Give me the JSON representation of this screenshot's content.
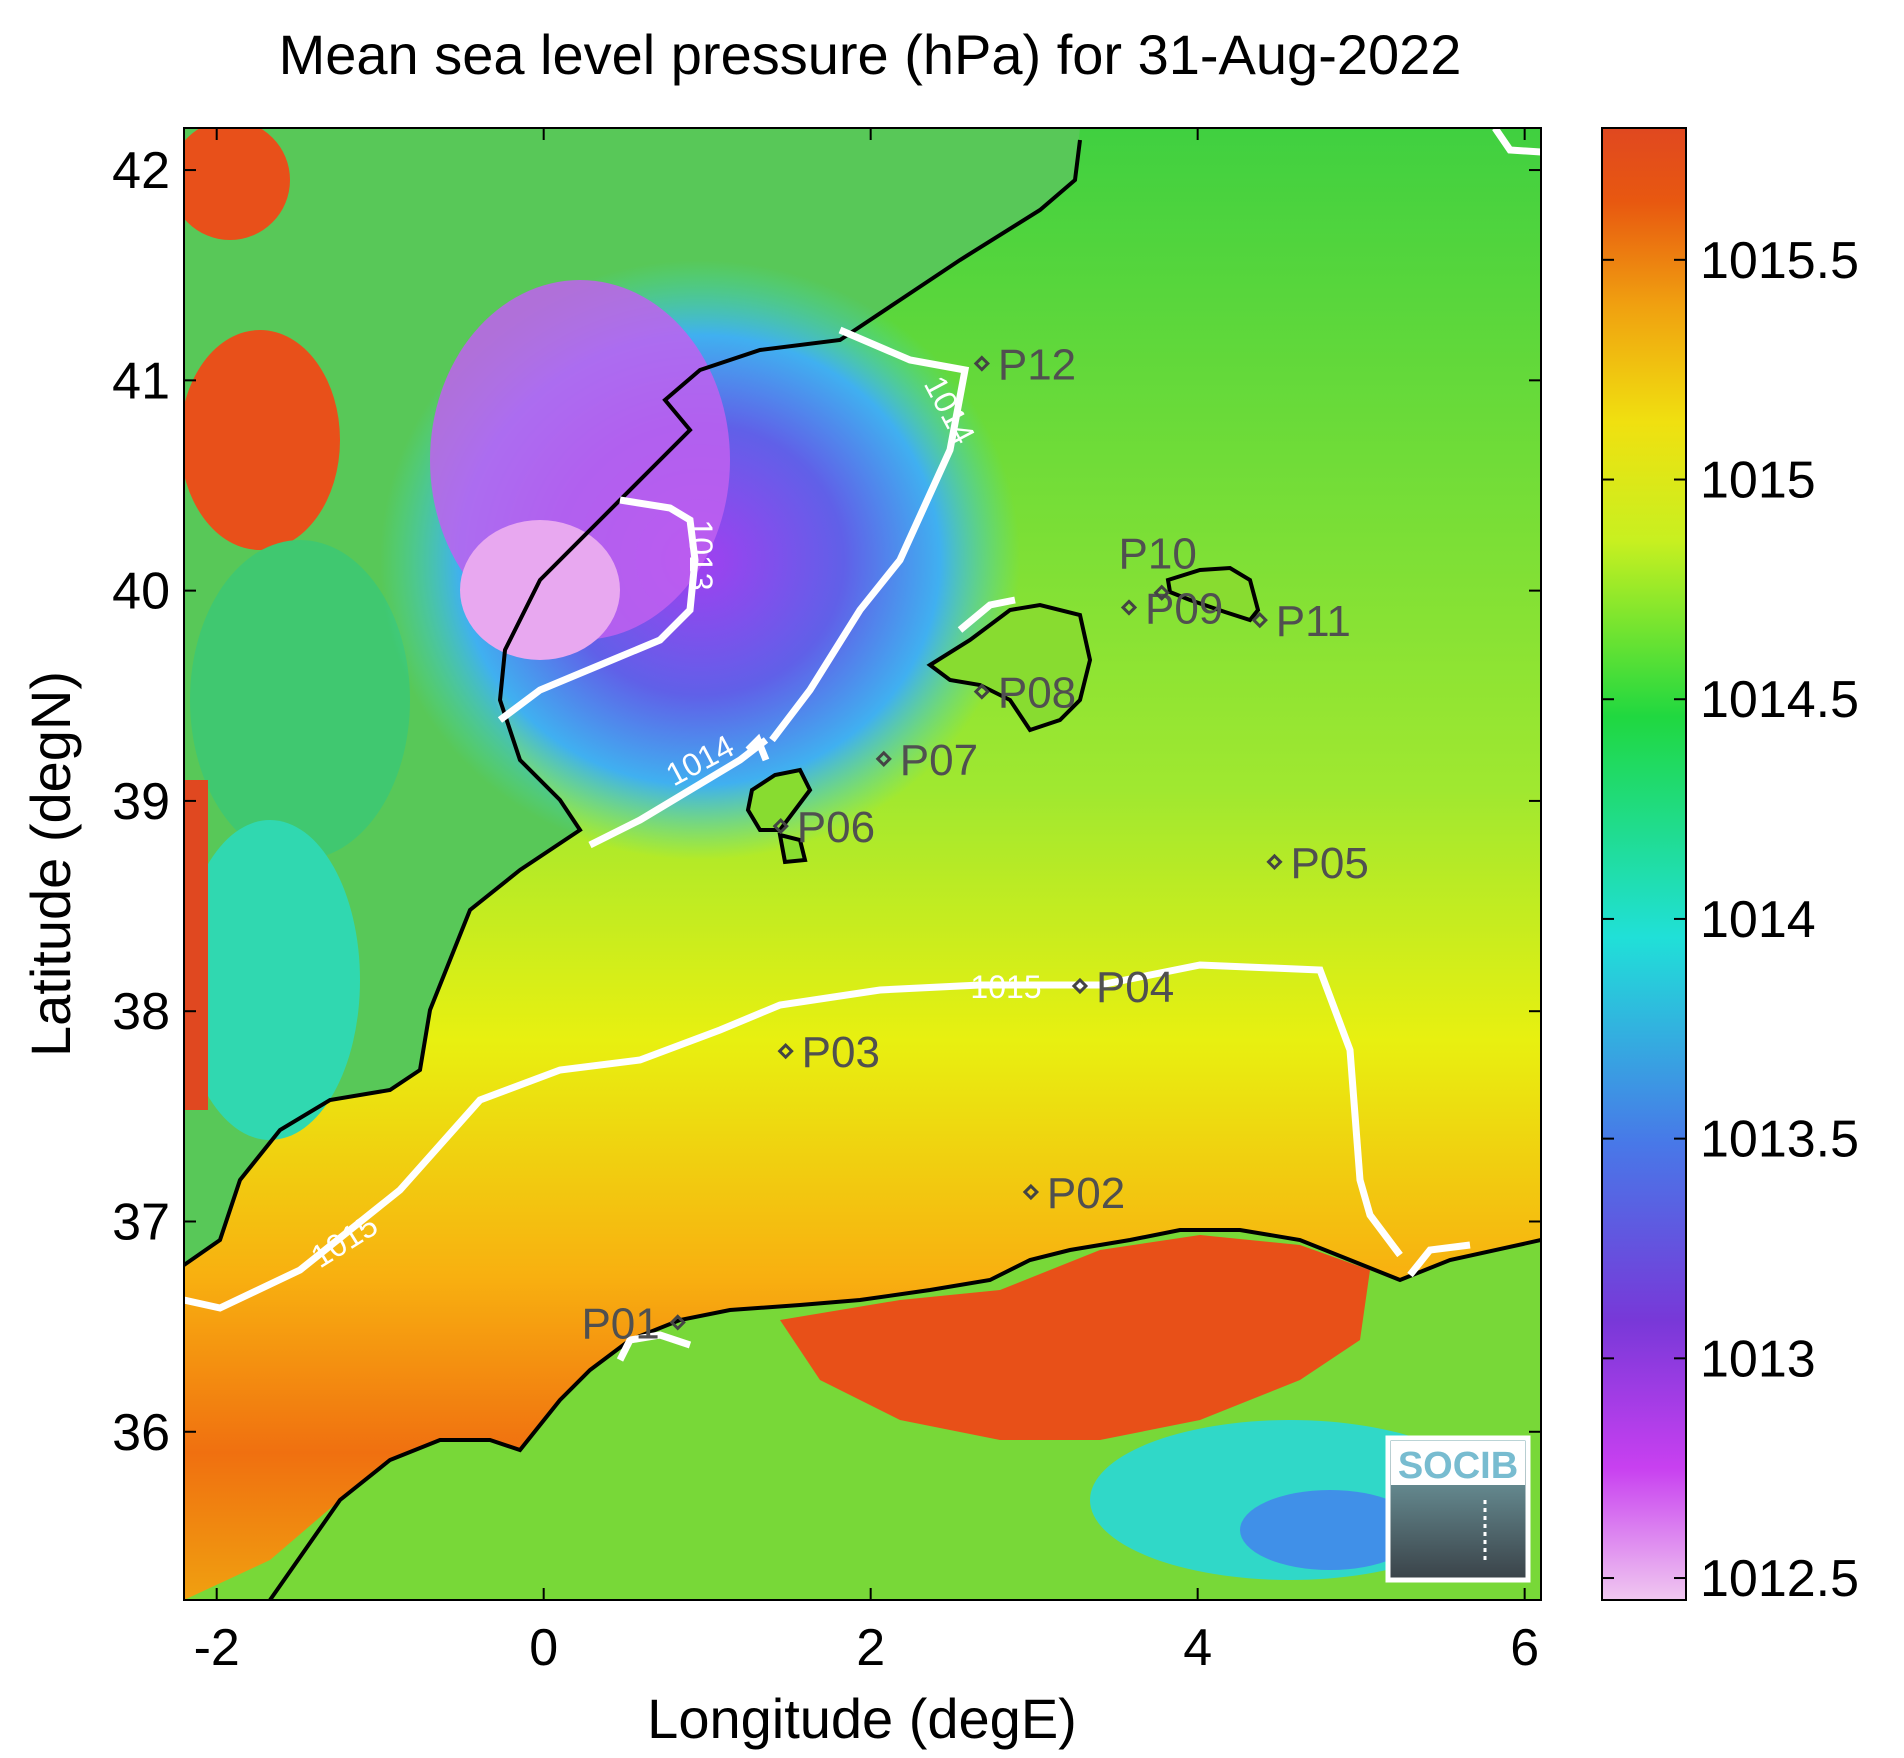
{
  "title": "Mean sea level pressure (hPa) for 31-Aug-2022",
  "logo_text": "SOCIB",
  "map": {
    "x_axis": {
      "label": "Longitude (degE)",
      "range": [
        -2.2,
        6.1
      ],
      "ticks": [
        {
          "value": -2,
          "label": "-2"
        },
        {
          "value": 0,
          "label": "0"
        },
        {
          "value": 2,
          "label": "2"
        },
        {
          "value": 4,
          "label": "4"
        },
        {
          "value": 6,
          "label": "6"
        }
      ]
    },
    "y_axis": {
      "label": "Latitude (degN)",
      "range": [
        35.2,
        42.2
      ],
      "ticks": [
        {
          "value": 36,
          "label": "36"
        },
        {
          "value": 37,
          "label": "37"
        },
        {
          "value": 38,
          "label": "38"
        },
        {
          "value": 39,
          "label": "39"
        },
        {
          "value": 40,
          "label": "40"
        },
        {
          "value": 41,
          "label": "41"
        },
        {
          "value": 42,
          "label": "42"
        }
      ]
    },
    "contours": [
      {
        "level": 1013,
        "label": "1013"
      },
      {
        "level": 1014,
        "label": "1014"
      },
      {
        "level": 1015,
        "label": "1015"
      }
    ],
    "stations": [
      {
        "name": "P01",
        "lon": 0.82,
        "lat": 36.52
      },
      {
        "name": "P02",
        "lon": 2.98,
        "lat": 37.14
      },
      {
        "name": "P03",
        "lon": 1.48,
        "lat": 37.81
      },
      {
        "name": "P04",
        "lon": 3.28,
        "lat": 38.12
      },
      {
        "name": "P05",
        "lon": 4.47,
        "lat": 38.71
      },
      {
        "name": "P06",
        "lon": 1.45,
        "lat": 38.88
      },
      {
        "name": "P07",
        "lon": 2.08,
        "lat": 39.2
      },
      {
        "name": "P08",
        "lon": 2.68,
        "lat": 39.52
      },
      {
        "name": "P09",
        "lon": 3.58,
        "lat": 39.92
      },
      {
        "name": "P10",
        "lon": 3.78,
        "lat": 39.99
      },
      {
        "name": "P11",
        "lon": 4.38,
        "lat": 39.86
      },
      {
        "name": "P12",
        "lon": 2.68,
        "lat": 41.08
      }
    ]
  },
  "colorbar": {
    "range": [
      1012.45,
      1015.8
    ],
    "ticks": [
      {
        "value": 1012.5,
        "label": "1012.5"
      },
      {
        "value": 1013,
        "label": "1013"
      },
      {
        "value": 1013.5,
        "label": "1013.5"
      },
      {
        "value": 1014,
        "label": "1014"
      },
      {
        "value": 1014.5,
        "label": "1014.5"
      },
      {
        "value": 1015,
        "label": "1015"
      },
      {
        "value": 1015.5,
        "label": "1015.5"
      }
    ],
    "colors": [
      "#f0c8f0",
      "#c840f0",
      "#7838d8",
      "#4878e8",
      "#20e0d8",
      "#20d840",
      "#c8f020",
      "#f0e010",
      "#f09010",
      "#e85010",
      "#e04820"
    ]
  }
}
